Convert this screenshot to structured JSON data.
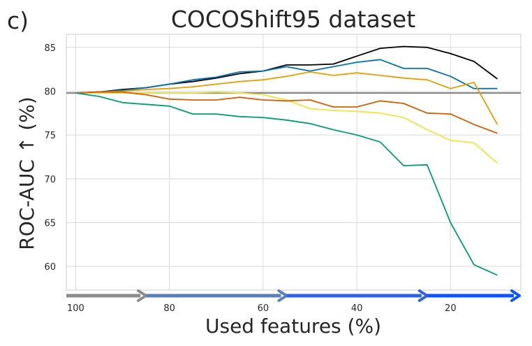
{
  "panel_label": "c)",
  "chart_data": {
    "type": "line",
    "title": "COCOShift95 dataset",
    "xlabel": "Used features (%)",
    "ylabel": "ROC-AUC ↑ (%)",
    "xlim": [
      102,
      5
    ],
    "ylim": [
      57.3,
      86.5
    ],
    "xticks": [
      100,
      80,
      60,
      40,
      20
    ],
    "yticks": [
      60,
      65,
      70,
      75,
      80,
      85
    ],
    "grid": true,
    "reference_line": 79.8,
    "x": [
      100,
      95,
      90,
      85,
      80,
      75,
      70,
      65,
      60,
      55,
      50,
      45,
      40,
      35,
      30,
      25,
      20,
      15,
      10
    ],
    "series": [
      {
        "color": "#000000",
        "values": [
          79.8,
          79.9,
          80.2,
          80.4,
          80.8,
          81.1,
          81.5,
          82.0,
          82.3,
          83.0,
          83.0,
          83.1,
          84.0,
          84.9,
          85.1,
          85.0,
          84.3,
          83.4,
          81.4
        ]
      },
      {
        "color": "#0072b2",
        "values": [
          79.8,
          79.9,
          80.1,
          80.4,
          80.8,
          81.3,
          81.6,
          82.2,
          82.3,
          82.8,
          82.3,
          82.8,
          83.3,
          83.6,
          82.6,
          82.6,
          81.7,
          80.3,
          80.3
        ]
      },
      {
        "color": "#e69f00",
        "values": [
          79.8,
          79.9,
          80.0,
          80.2,
          80.3,
          80.5,
          80.8,
          81.1,
          81.3,
          81.7,
          82.2,
          81.8,
          82.1,
          81.8,
          81.5,
          81.3,
          80.3,
          81.0,
          76.2
        ]
      },
      {
        "color": "#f0e442",
        "values": [
          79.8,
          79.8,
          79.8,
          79.8,
          79.8,
          79.8,
          79.9,
          79.8,
          79.6,
          79.0,
          78.0,
          77.8,
          77.7,
          77.5,
          77.0,
          75.6,
          74.4,
          74.1,
          71.8
        ]
      },
      {
        "color": "#d55e00",
        "values": [
          79.8,
          79.9,
          79.9,
          79.6,
          79.1,
          79.0,
          79.0,
          79.3,
          79.0,
          78.9,
          79.0,
          78.2,
          78.2,
          78.9,
          78.6,
          77.5,
          77.4,
          76.2,
          75.2
        ]
      },
      {
        "color": "#009e73",
        "values": [
          79.8,
          79.4,
          78.7,
          78.5,
          78.3,
          77.4,
          77.4,
          77.1,
          77.0,
          76.7,
          76.3,
          75.6,
          75.0,
          74.2,
          71.5,
          71.6,
          65.0,
          60.2,
          59.0
        ]
      }
    ],
    "arrows": [
      {
        "from": 102,
        "to": 85,
        "color": "#8c8c8c"
      },
      {
        "from": 85,
        "to": 55,
        "color": "#5a7fbe"
      },
      {
        "from": 55,
        "to": 25,
        "color": "#2f62e0"
      },
      {
        "from": 25,
        "to": 5,
        "color": "#0a55ff"
      }
    ]
  }
}
